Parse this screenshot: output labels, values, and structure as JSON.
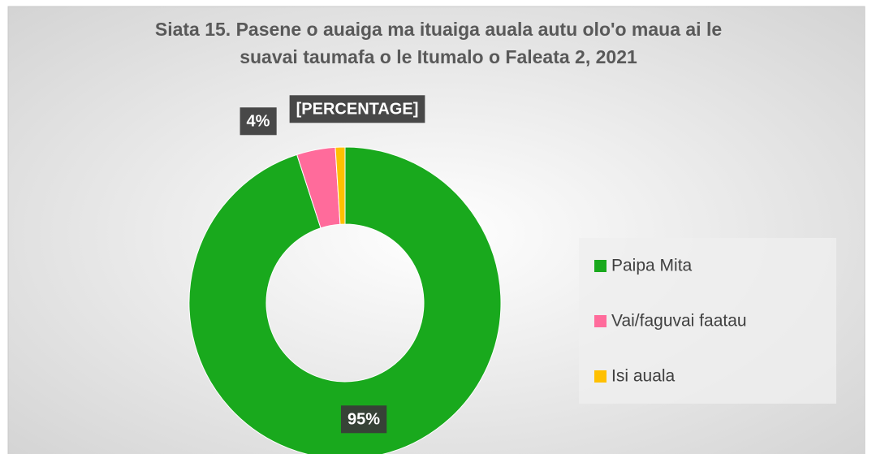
{
  "chart_data": {
    "type": "donut",
    "title": [
      "Siata 15. Pasene o auaiga ma ituaiga auala autu olo'o maua ai le",
      "suavai taumafa o le Itumalo o Faleata 2, 2021"
    ],
    "categories": [
      "Paipa Mita",
      "Vai/faguvai faatau",
      "Isi auala"
    ],
    "values": [
      95,
      4,
      1
    ],
    "value_labels": [
      "95%",
      "4%",
      "[PERCENTAGE]"
    ],
    "colors": [
      "#19a91d",
      "#ff6b9b",
      "#ffc000"
    ],
    "legend": "right"
  }
}
